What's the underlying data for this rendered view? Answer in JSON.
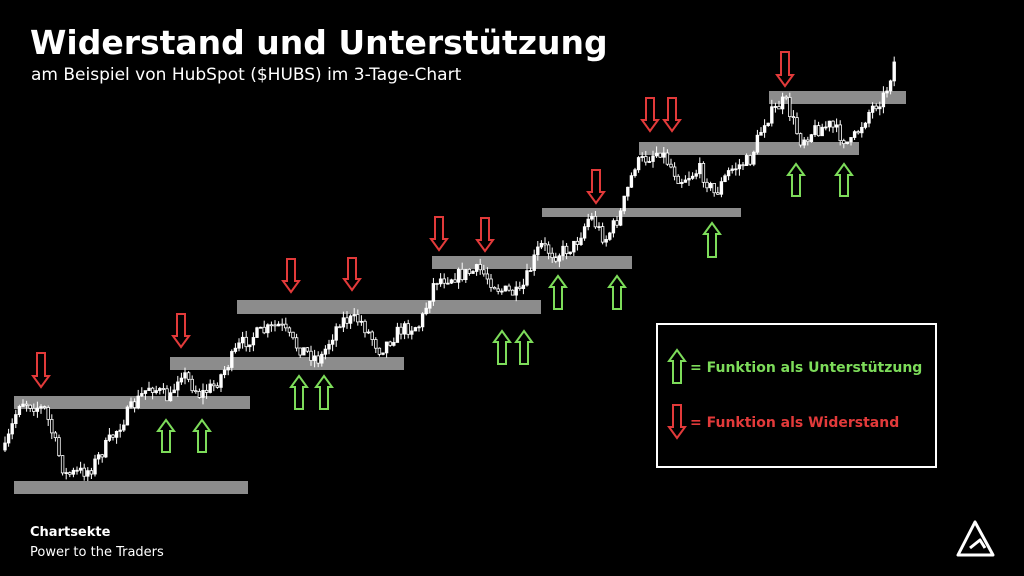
{
  "header": {
    "title": "Widerstand und Unterstützung",
    "subtitle": "am Beispiel von HubSpot ($HUBS) im 3-Tage-Chart"
  },
  "legend": {
    "support": "= Funktion als Unterstützung",
    "resistance": "= Funktion als Widerstand"
  },
  "footer": {
    "brand": "Chartsekte",
    "tagline": "Power to the Traders"
  }
}
